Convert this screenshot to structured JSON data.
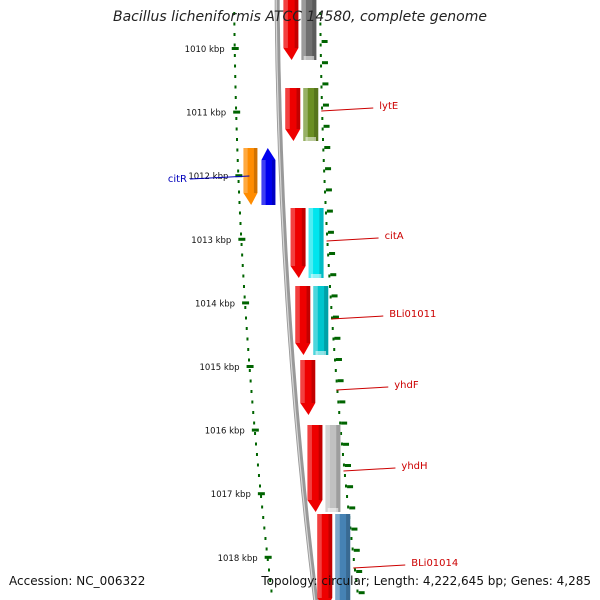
{
  "title": "Bacillus licheniformis ATCC 14580, complete genome",
  "footer": {
    "accession": "Accession: NC_006322",
    "summary": "Topology: circular; Length: 4,222,645 bp; Genes: 4,285"
  },
  "ticks": [
    {
      "label": "1010 kbp"
    },
    {
      "label": "1011 kbp"
    },
    {
      "label": "1012 kbp"
    },
    {
      "label": "1013 kbp"
    },
    {
      "label": "1014 kbp"
    },
    {
      "label": "1015 kbp"
    },
    {
      "label": "1016 kbp"
    },
    {
      "label": "1017 kbp"
    },
    {
      "label": "1018 kbp"
    }
  ],
  "genes": [
    {
      "label": "",
      "strand": "+",
      "track_color": "#707070"
    },
    {
      "label": "lytE",
      "strand": "+",
      "track_color": "#6b8e23"
    },
    {
      "label": "citR",
      "strand": "-",
      "track_color": "#0000ee"
    },
    {
      "label": "citA",
      "strand": "+",
      "track_color": "#00e5ee"
    },
    {
      "label": "BLi01011",
      "strand": "+",
      "track_color": "#00c5cd"
    },
    {
      "label": "yhdF",
      "strand": "+",
      "track_color": ""
    },
    {
      "label": "yhdH",
      "strand": "+",
      "track_color": "#c0c0c0"
    },
    {
      "label": "BLi01014",
      "strand": "+",
      "track_color": "#4682b4"
    }
  ],
  "colors": {
    "backbone": "#999999",
    "cds": "#ee0000",
    "tick": "#006400",
    "label_plus": "#cc0000",
    "label_minus": "#0000bb",
    "minus_cds": "#ff8c00"
  }
}
